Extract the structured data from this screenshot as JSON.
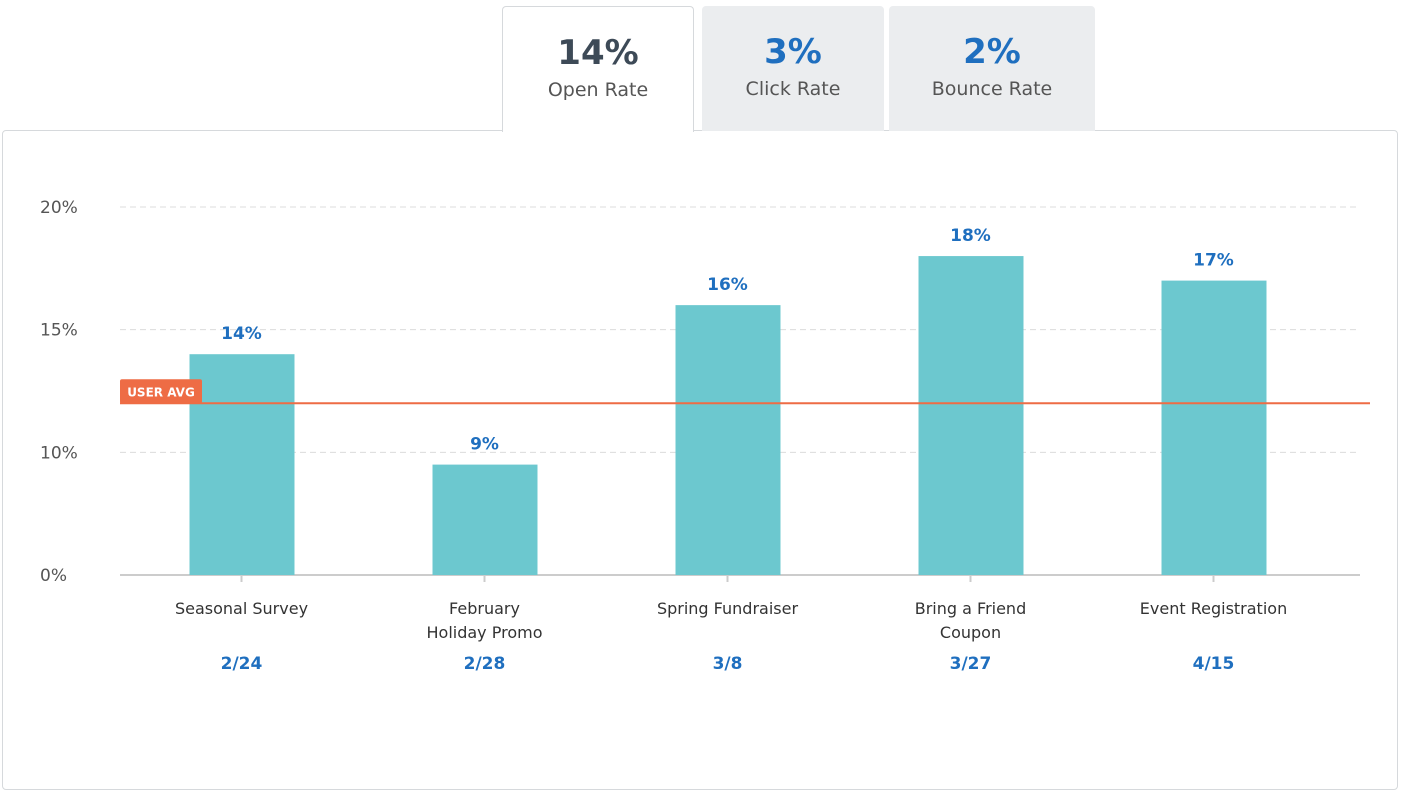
{
  "tabs": [
    {
      "value": "14%",
      "label": "Open Rate",
      "active": true
    },
    {
      "value": "3%",
      "label": "Click Rate",
      "active": false
    },
    {
      "value": "2%",
      "label": "Bounce Rate",
      "active": false
    }
  ],
  "chart_data": {
    "type": "bar",
    "categories": [
      "Seasonal Survey",
      "February\nHoliday Promo",
      "Spring Fundraiser",
      "Bring a Friend\nCoupon",
      "Event Registration"
    ],
    "dates": [
      "2/24",
      "2/28",
      "3/8",
      "3/27",
      "4/15"
    ],
    "values": [
      14,
      9,
      16,
      18,
      17
    ],
    "value_labels": [
      "14%",
      "9%",
      "16%",
      "18%",
      "17%"
    ],
    "color": "#6cc8cf",
    "ylim": [
      0,
      20
    ],
    "yticks": [
      {
        "value": 0,
        "label": "0%"
      },
      {
        "value": 10,
        "label": "10%"
      },
      {
        "value": 15,
        "label": "15%"
      },
      {
        "value": 20,
        "label": "20%"
      }
    ],
    "grid": true,
    "reference_line": {
      "label": "USER AVG",
      "value": 12,
      "color": "#ee6c45"
    }
  }
}
